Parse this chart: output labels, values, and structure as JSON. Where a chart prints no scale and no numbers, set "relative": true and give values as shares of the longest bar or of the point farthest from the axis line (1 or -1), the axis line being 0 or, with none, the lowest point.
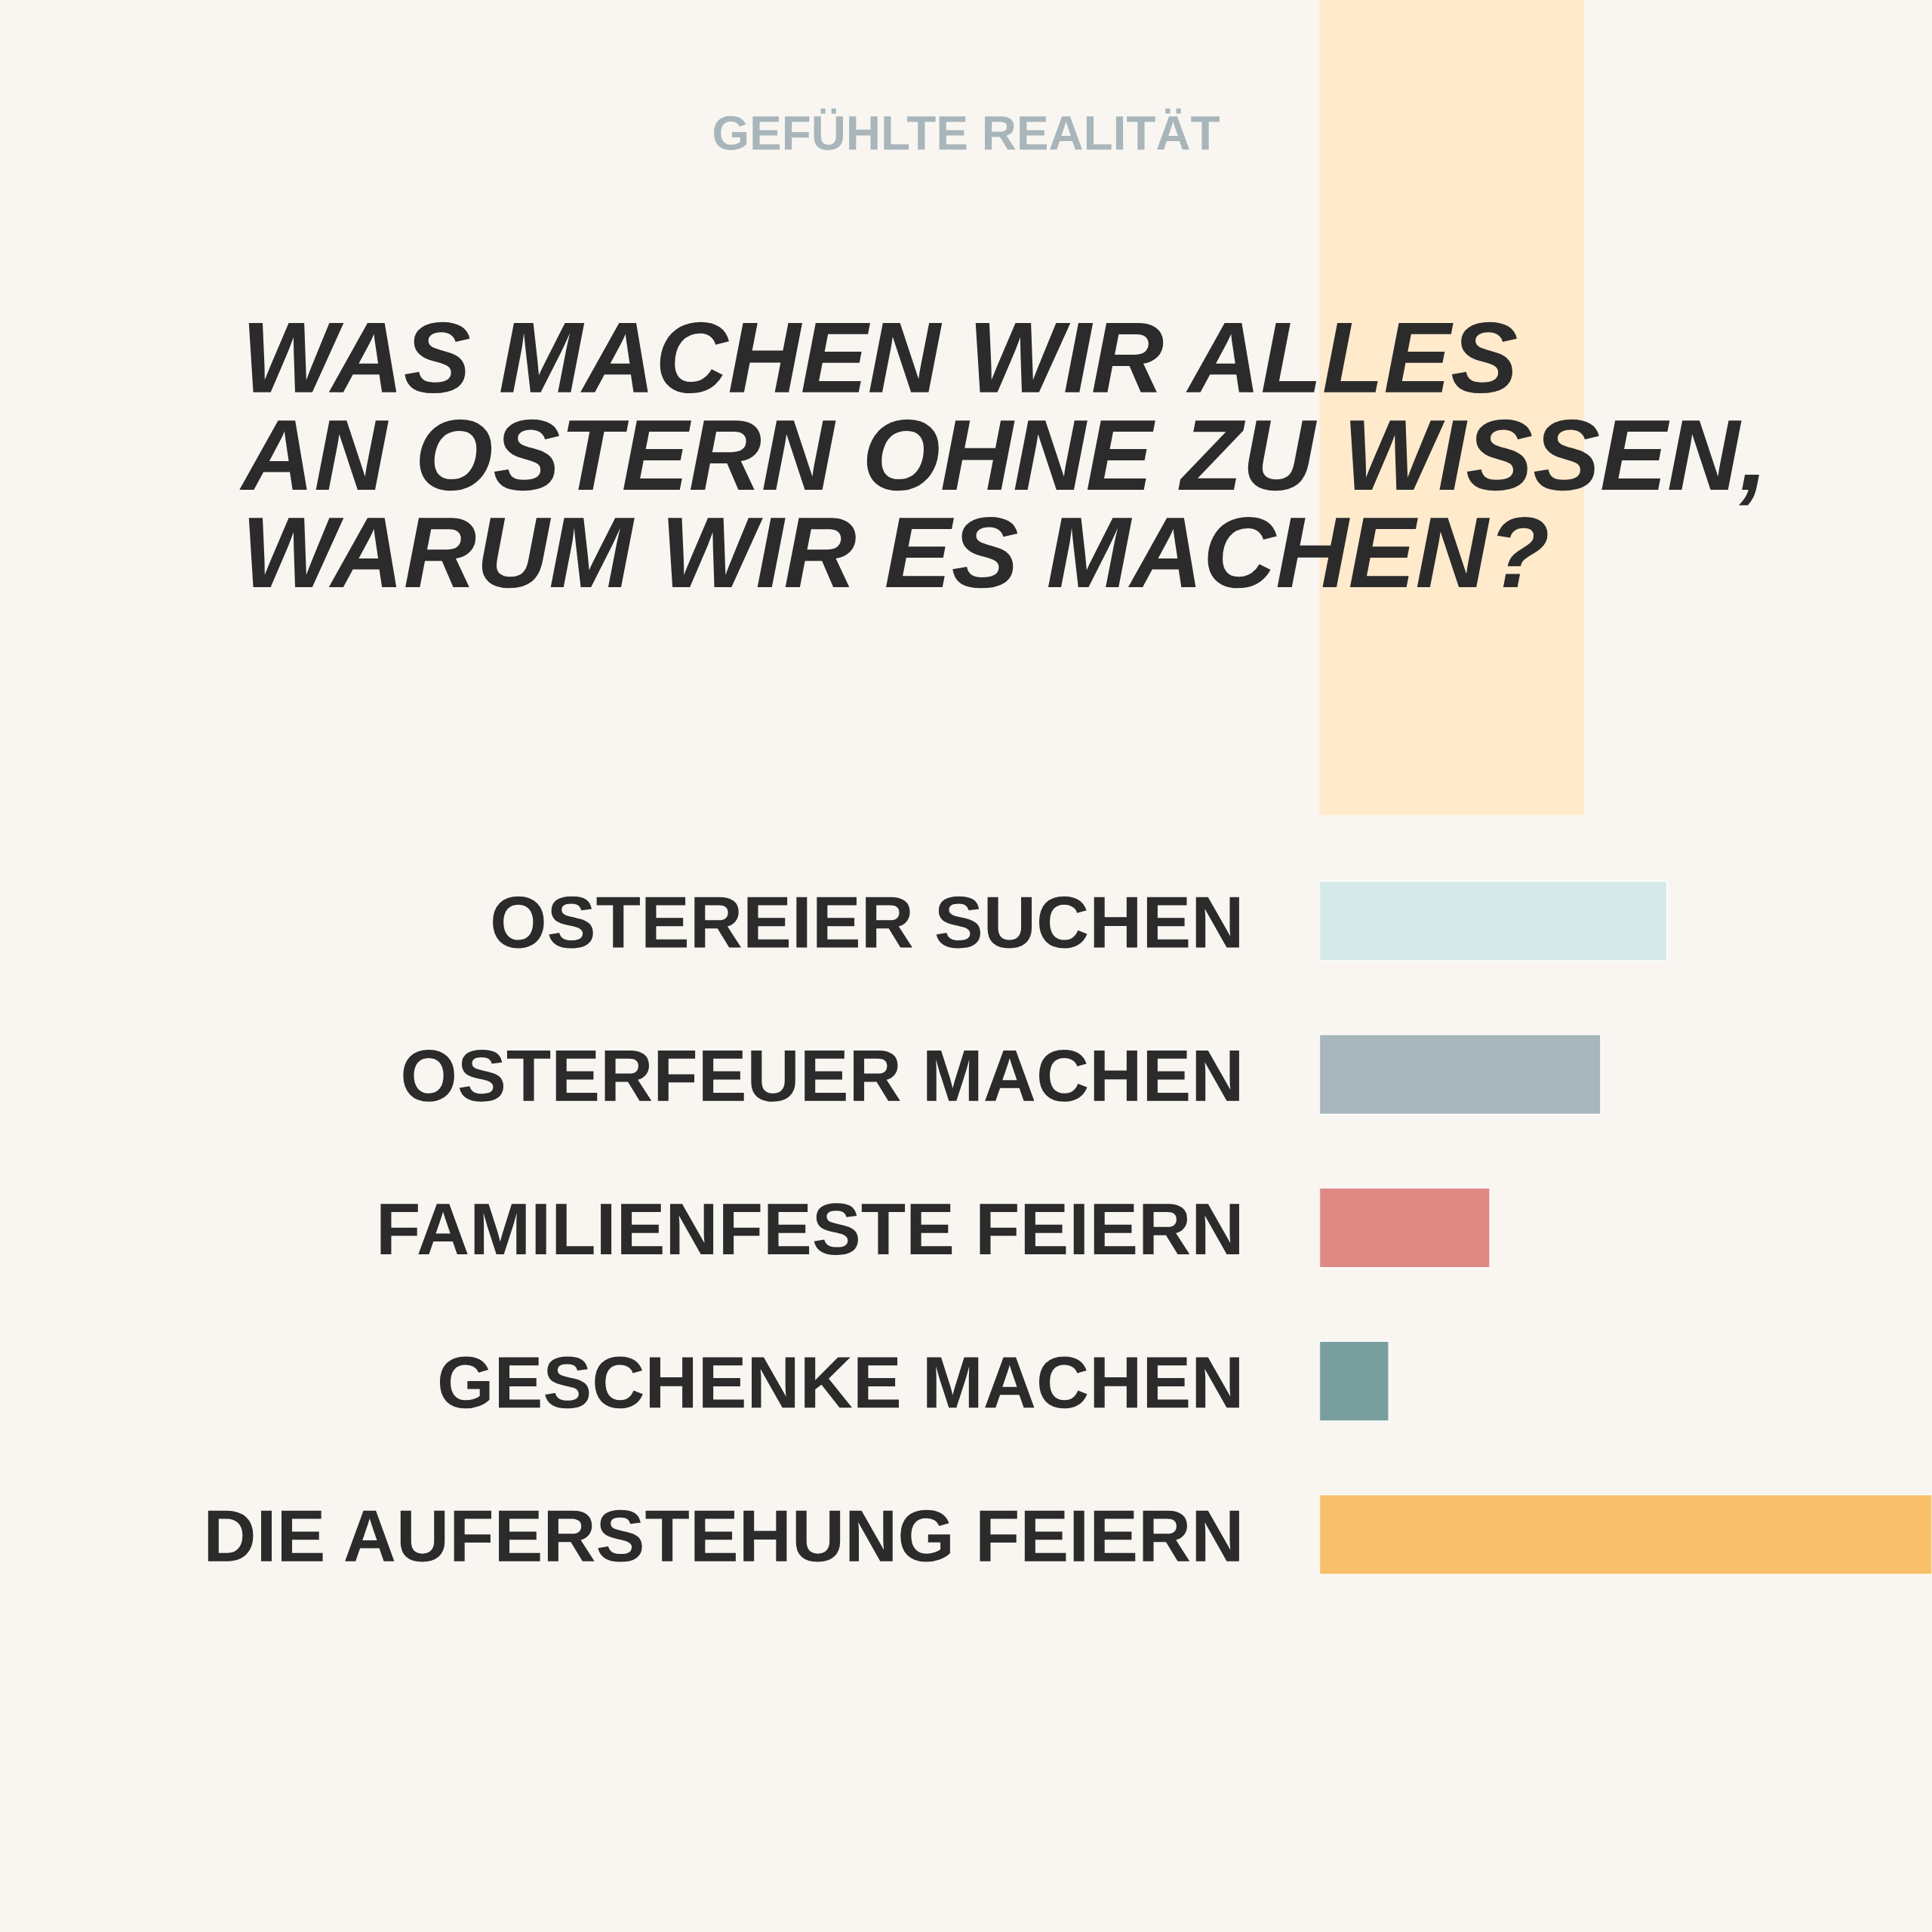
{
  "chart_data": {
    "type": "bar",
    "orientation": "horizontal",
    "relative": true,
    "subtitle": "GEFÜHLTE REALITÄT",
    "title": "WAS MACHEN WIR ALLES\nAN OSTERN OHNE ZU WISSEN,\nWARUM WIR ES MACHEN?",
    "categories": [
      "OSTEREIER SUCHEN",
      "OSTERFEUER MACHEN",
      "FAMILIENFESTE FEIERN",
      "GESCHENKE MACHEN",
      "DIE AUFERSTEHUNG FEIERN"
    ],
    "values": [
      0.567,
      0.459,
      0.278,
      0.113,
      1
    ],
    "colors": [
      "#d5eae8",
      "#a8b6bb",
      "#df8985",
      "#789f9d",
      "#f8c06b"
    ]
  }
}
